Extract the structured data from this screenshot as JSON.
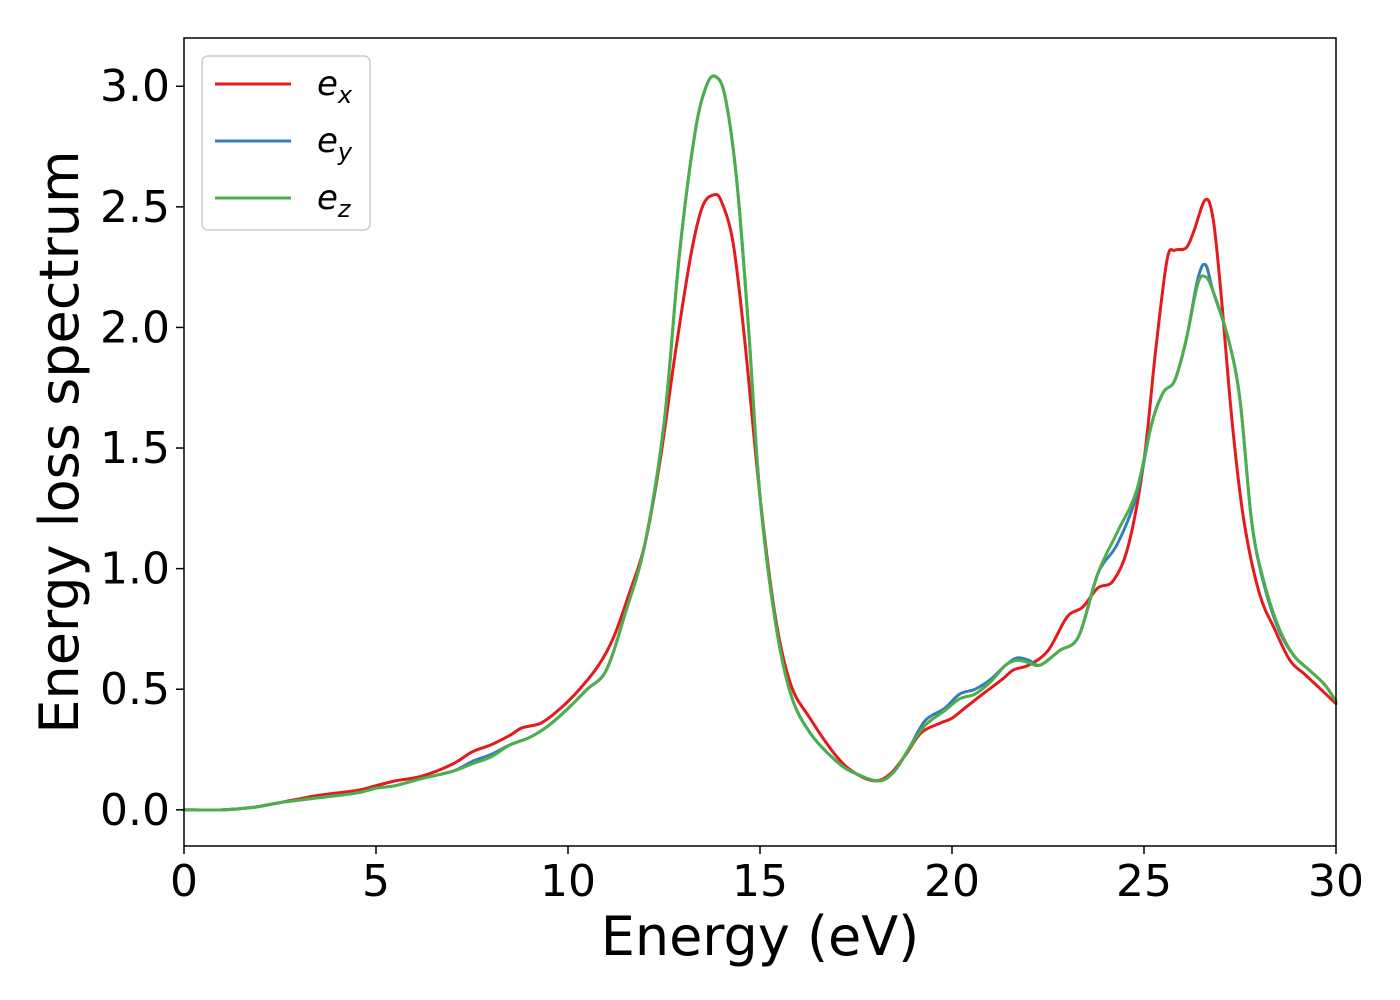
{
  "chart_data": {
    "type": "line",
    "title": "",
    "xlabel": "Energy (eV)",
    "ylabel": "Energy loss spectrum",
    "xlim": [
      0,
      30
    ],
    "ylim": [
      -0.15,
      3.2
    ],
    "xticks": [
      "0",
      "5",
      "10",
      "15",
      "20",
      "25",
      "30"
    ],
    "yticks": [
      "0.0",
      "0.5",
      "1.0",
      "1.5",
      "2.0",
      "2.5",
      "3.0"
    ],
    "grid": false,
    "legend": "top-left",
    "series": [
      {
        "name": "e",
        "subscript": "x",
        "color": "#e41a1c",
        "points": [
          [
            0,
            0
          ],
          [
            1,
            0
          ],
          [
            1.8,
            0.01
          ],
          [
            2.5,
            0.03
          ],
          [
            3.5,
            0.06
          ],
          [
            4.5,
            0.08
          ],
          [
            5,
            0.1
          ],
          [
            5.5,
            0.12
          ],
          [
            6.2,
            0.14
          ],
          [
            7,
            0.19
          ],
          [
            7.5,
            0.24
          ],
          [
            8,
            0.27
          ],
          [
            8.5,
            0.31
          ],
          [
            8.8,
            0.34
          ],
          [
            9.3,
            0.36
          ],
          [
            9.8,
            0.42
          ],
          [
            10.3,
            0.5
          ],
          [
            10.8,
            0.6
          ],
          [
            11.2,
            0.72
          ],
          [
            11.6,
            0.9
          ],
          [
            12,
            1.1
          ],
          [
            12.4,
            1.45
          ],
          [
            12.8,
            1.9
          ],
          [
            13.2,
            2.3
          ],
          [
            13.5,
            2.5
          ],
          [
            13.8,
            2.55
          ],
          [
            14,
            2.52
          ],
          [
            14.3,
            2.35
          ],
          [
            14.6,
            1.95
          ],
          [
            15,
            1.3
          ],
          [
            15.4,
            0.8
          ],
          [
            15.8,
            0.52
          ],
          [
            16.3,
            0.38
          ],
          [
            17,
            0.22
          ],
          [
            17.5,
            0.15
          ],
          [
            18,
            0.12
          ],
          [
            18.4,
            0.15
          ],
          [
            18.8,
            0.23
          ],
          [
            19.2,
            0.32
          ],
          [
            19.7,
            0.36
          ],
          [
            20,
            0.38
          ],
          [
            20.4,
            0.43
          ],
          [
            20.8,
            0.48
          ],
          [
            21.3,
            0.54
          ],
          [
            21.6,
            0.58
          ],
          [
            22,
            0.6
          ],
          [
            22.5,
            0.66
          ],
          [
            23,
            0.8
          ],
          [
            23.4,
            0.84
          ],
          [
            23.8,
            0.92
          ],
          [
            24.2,
            0.95
          ],
          [
            24.6,
            1.1
          ],
          [
            25,
            1.45
          ],
          [
            25.3,
            1.9
          ],
          [
            25.6,
            2.28
          ],
          [
            25.8,
            2.32
          ],
          [
            26.1,
            2.33
          ],
          [
            26.3,
            2.4
          ],
          [
            26.6,
            2.53
          ],
          [
            26.8,
            2.45
          ],
          [
            27,
            2.15
          ],
          [
            27.3,
            1.6
          ],
          [
            27.6,
            1.2
          ],
          [
            28,
            0.9
          ],
          [
            28.4,
            0.75
          ],
          [
            28.8,
            0.62
          ],
          [
            29.2,
            0.56
          ],
          [
            29.6,
            0.5
          ],
          [
            30,
            0.44
          ]
        ]
      },
      {
        "name": "e",
        "subscript": "y",
        "color": "#377eb8",
        "points": [
          [
            0,
            0
          ],
          [
            1,
            0
          ],
          [
            1.8,
            0.01
          ],
          [
            2.5,
            0.03
          ],
          [
            3.5,
            0.05
          ],
          [
            4.5,
            0.07
          ],
          [
            5,
            0.09
          ],
          [
            5.5,
            0.1
          ],
          [
            6.2,
            0.13
          ],
          [
            7,
            0.16
          ],
          [
            7.5,
            0.2
          ],
          [
            8,
            0.23
          ],
          [
            8.5,
            0.27
          ],
          [
            9,
            0.3
          ],
          [
            9.5,
            0.35
          ],
          [
            10,
            0.42
          ],
          [
            10.5,
            0.5
          ],
          [
            11,
            0.58
          ],
          [
            11.5,
            0.82
          ],
          [
            12,
            1.1
          ],
          [
            12.5,
            1.6
          ],
          [
            12.9,
            2.3
          ],
          [
            13.3,
            2.8
          ],
          [
            13.6,
            3.0
          ],
          [
            13.85,
            3.04
          ],
          [
            14.1,
            2.95
          ],
          [
            14.4,
            2.6
          ],
          [
            14.7,
            2.0
          ],
          [
            15,
            1.3
          ],
          [
            15.4,
            0.78
          ],
          [
            15.8,
            0.48
          ],
          [
            16.3,
            0.32
          ],
          [
            17,
            0.2
          ],
          [
            17.5,
            0.15
          ],
          [
            18.1,
            0.12
          ],
          [
            18.5,
            0.16
          ],
          [
            18.9,
            0.26
          ],
          [
            19.3,
            0.37
          ],
          [
            19.8,
            0.42
          ],
          [
            20.2,
            0.48
          ],
          [
            20.6,
            0.5
          ],
          [
            21,
            0.54
          ],
          [
            21.4,
            0.6
          ],
          [
            21.7,
            0.63
          ],
          [
            22,
            0.62
          ],
          [
            22.3,
            0.6
          ],
          [
            22.8,
            0.66
          ],
          [
            23.3,
            0.72
          ],
          [
            23.8,
            0.98
          ],
          [
            24.3,
            1.1
          ],
          [
            24.8,
            1.3
          ],
          [
            25.2,
            1.6
          ],
          [
            25.5,
            1.73
          ],
          [
            25.8,
            1.78
          ],
          [
            26.1,
            1.95
          ],
          [
            26.4,
            2.2
          ],
          [
            26.6,
            2.26
          ],
          [
            26.8,
            2.15
          ],
          [
            27.2,
            1.95
          ],
          [
            27.5,
            1.7
          ],
          [
            27.8,
            1.2
          ],
          [
            28.1,
            0.95
          ],
          [
            28.5,
            0.75
          ],
          [
            28.9,
            0.64
          ],
          [
            29.3,
            0.58
          ],
          [
            29.7,
            0.52
          ],
          [
            30,
            0.45
          ]
        ]
      },
      {
        "name": "e",
        "subscript": "z",
        "color": "#4daf4a",
        "points": [
          [
            0,
            0
          ],
          [
            1,
            0
          ],
          [
            1.8,
            0.01
          ],
          [
            2.5,
            0.03
          ],
          [
            3.5,
            0.05
          ],
          [
            4.5,
            0.07
          ],
          [
            5,
            0.09
          ],
          [
            5.5,
            0.1
          ],
          [
            6.2,
            0.13
          ],
          [
            7,
            0.16
          ],
          [
            7.5,
            0.19
          ],
          [
            8,
            0.22
          ],
          [
            8.5,
            0.27
          ],
          [
            9,
            0.3
          ],
          [
            9.5,
            0.35
          ],
          [
            10,
            0.42
          ],
          [
            10.5,
            0.5
          ],
          [
            11,
            0.58
          ],
          [
            11.5,
            0.82
          ],
          [
            12,
            1.1
          ],
          [
            12.5,
            1.6
          ],
          [
            12.9,
            2.3
          ],
          [
            13.3,
            2.8
          ],
          [
            13.6,
            3.0
          ],
          [
            13.85,
            3.04
          ],
          [
            14.1,
            2.95
          ],
          [
            14.4,
            2.6
          ],
          [
            14.7,
            2.0
          ],
          [
            15,
            1.3
          ],
          [
            15.4,
            0.78
          ],
          [
            15.8,
            0.48
          ],
          [
            16.3,
            0.32
          ],
          [
            17,
            0.2
          ],
          [
            17.5,
            0.15
          ],
          [
            18.1,
            0.12
          ],
          [
            18.5,
            0.16
          ],
          [
            18.9,
            0.26
          ],
          [
            19.3,
            0.35
          ],
          [
            19.8,
            0.41
          ],
          [
            20.2,
            0.46
          ],
          [
            20.6,
            0.48
          ],
          [
            21,
            0.53
          ],
          [
            21.4,
            0.6
          ],
          [
            21.7,
            0.62
          ],
          [
            22,
            0.61
          ],
          [
            22.3,
            0.6
          ],
          [
            22.8,
            0.66
          ],
          [
            23.3,
            0.72
          ],
          [
            23.8,
            0.98
          ],
          [
            24.3,
            1.15
          ],
          [
            24.8,
            1.32
          ],
          [
            25.2,
            1.6
          ],
          [
            25.5,
            1.73
          ],
          [
            25.8,
            1.78
          ],
          [
            26.1,
            1.95
          ],
          [
            26.4,
            2.18
          ],
          [
            26.6,
            2.21
          ],
          [
            26.8,
            2.15
          ],
          [
            27.2,
            1.95
          ],
          [
            27.5,
            1.7
          ],
          [
            27.8,
            1.2
          ],
          [
            28.1,
            0.96
          ],
          [
            28.5,
            0.76
          ],
          [
            28.9,
            0.64
          ],
          [
            29.3,
            0.58
          ],
          [
            29.7,
            0.52
          ],
          [
            30,
            0.45
          ]
        ]
      }
    ]
  }
}
